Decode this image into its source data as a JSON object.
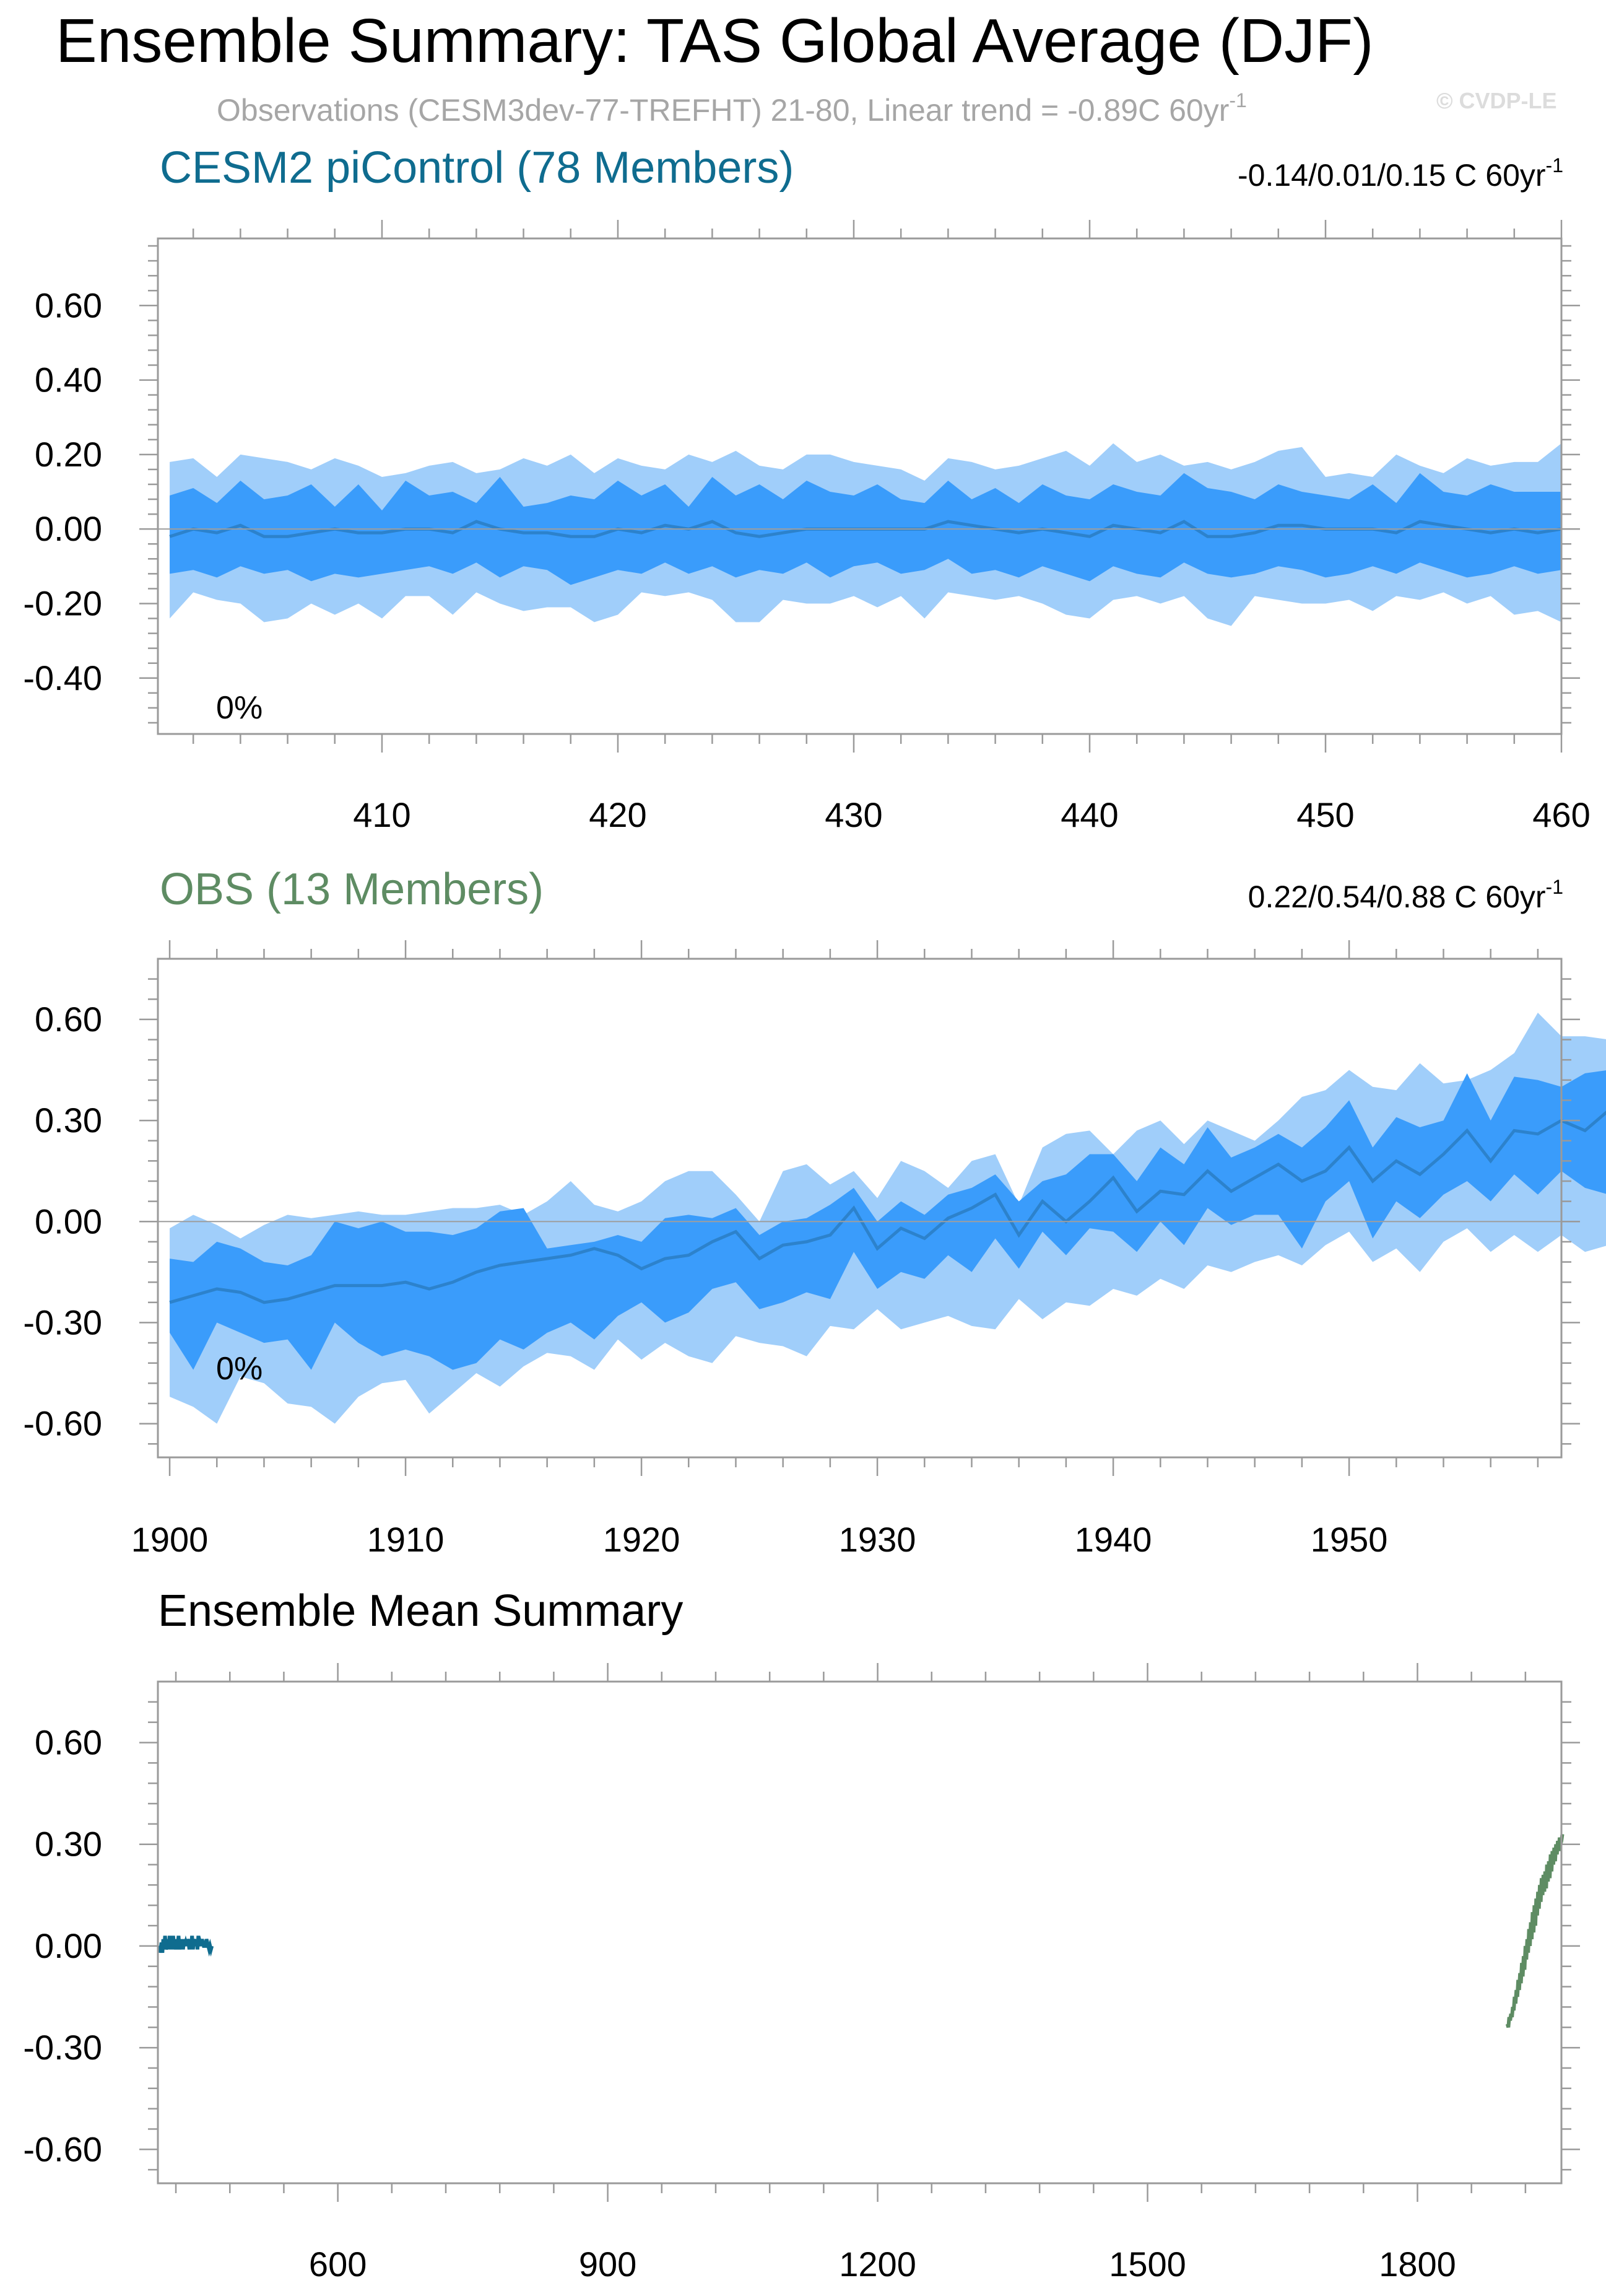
{
  "figure": {
    "title": "Ensemble Summary: TAS Global Average (DJF)",
    "subtitle": "Observations (CESM3dev-77-TREFHT) 21-80, Linear trend = -0.89C 60yr",
    "subtitle_sup": "-1",
    "copyright": "© CVDP-LE",
    "colors": {
      "outer_band": "#a0cefa",
      "inner_band": "#3a9cfb",
      "mean_line": "#2c82cc",
      "model_color": "#0f6c8f",
      "obs_color": "#5e8c63",
      "axis": "#9a9a9a",
      "text": "#000000"
    }
  },
  "chart_data": [
    {
      "type": "area",
      "panel": "top",
      "title": "CESM2 piControl (78 Members)",
      "stats": "-0.14/0.01/0.15 C 60yr",
      "stats_sup": "-1",
      "annotation": "0%",
      "xlim": [
        400.5,
        460
      ],
      "ylim": [
        -0.55,
        0.78
      ],
      "yticks": [
        0.6,
        0.4,
        0.2,
        0.0,
        -0.2,
        -0.4
      ],
      "ytick_labels": [
        "0.60",
        "0.40",
        "0.20",
        "0.00",
        "-0.20",
        "-0.40"
      ],
      "xticks": [
        410,
        420,
        430,
        440,
        450,
        460
      ],
      "xtick_labels": [
        "410",
        "420",
        "430",
        "440",
        "450",
        "460"
      ],
      "x_start": 401,
      "mean": [
        -0.02,
        0.0,
        -0.01,
        0.01,
        -0.02,
        -0.02,
        -0.01,
        0.0,
        -0.01,
        -0.01,
        0.0,
        0.0,
        -0.01,
        0.02,
        0.0,
        -0.01,
        -0.01,
        -0.02,
        -0.02,
        0.0,
        -0.01,
        0.01,
        0.0,
        0.02,
        -0.01,
        -0.02,
        -0.01,
        0.0,
        0.0,
        0.0,
        0.0,
        0.0,
        0.0,
        0.02,
        0.01,
        0.0,
        -0.01,
        0.0,
        -0.01,
        -0.02,
        0.01,
        0.0,
        -0.01,
        0.02,
        -0.02,
        -0.02,
        -0.01,
        0.01,
        0.01,
        0.0,
        0.0,
        0.0,
        -0.01,
        0.02,
        0.01,
        0.0,
        -0.01,
        0.0,
        -0.01,
        0.0
      ],
      "inner_hi": [
        0.09,
        0.11,
        0.07,
        0.13,
        0.08,
        0.09,
        0.12,
        0.06,
        0.12,
        0.05,
        0.13,
        0.09,
        0.1,
        0.07,
        0.14,
        0.06,
        0.07,
        0.09,
        0.08,
        0.13,
        0.09,
        0.12,
        0.06,
        0.14,
        0.09,
        0.12,
        0.08,
        0.13,
        0.1,
        0.09,
        0.12,
        0.08,
        0.07,
        0.13,
        0.08,
        0.11,
        0.07,
        0.12,
        0.09,
        0.08,
        0.12,
        0.1,
        0.09,
        0.15,
        0.11,
        0.1,
        0.08,
        0.12,
        0.1,
        0.09,
        0.08,
        0.12,
        0.07,
        0.15,
        0.1,
        0.09,
        0.12,
        0.1,
        0.1,
        0.1
      ],
      "inner_lo": [
        -0.12,
        -0.11,
        -0.13,
        -0.1,
        -0.12,
        -0.11,
        -0.14,
        -0.12,
        -0.13,
        -0.12,
        -0.11,
        -0.1,
        -0.12,
        -0.09,
        -0.13,
        -0.1,
        -0.11,
        -0.15,
        -0.13,
        -0.11,
        -0.12,
        -0.09,
        -0.12,
        -0.1,
        -0.13,
        -0.11,
        -0.12,
        -0.09,
        -0.13,
        -0.1,
        -0.09,
        -0.12,
        -0.11,
        -0.08,
        -0.12,
        -0.11,
        -0.13,
        -0.1,
        -0.12,
        -0.14,
        -0.1,
        -0.12,
        -0.13,
        -0.09,
        -0.12,
        -0.13,
        -0.12,
        -0.1,
        -0.11,
        -0.13,
        -0.12,
        -0.1,
        -0.12,
        -0.09,
        -0.11,
        -0.13,
        -0.12,
        -0.1,
        -0.12,
        -0.11
      ],
      "outer_hi": [
        0.18,
        0.19,
        0.14,
        0.2,
        0.19,
        0.18,
        0.16,
        0.19,
        0.17,
        0.14,
        0.15,
        0.17,
        0.18,
        0.15,
        0.16,
        0.19,
        0.17,
        0.2,
        0.15,
        0.19,
        0.17,
        0.16,
        0.2,
        0.18,
        0.21,
        0.17,
        0.16,
        0.2,
        0.2,
        0.18,
        0.17,
        0.16,
        0.13,
        0.19,
        0.18,
        0.16,
        0.17,
        0.19,
        0.21,
        0.17,
        0.23,
        0.18,
        0.2,
        0.17,
        0.18,
        0.16,
        0.18,
        0.21,
        0.22,
        0.14,
        0.15,
        0.14,
        0.2,
        0.17,
        0.15,
        0.19,
        0.17,
        0.18,
        0.18,
        0.23
      ],
      "outer_lo": [
        -0.24,
        -0.17,
        -0.19,
        -0.2,
        -0.25,
        -0.24,
        -0.2,
        -0.23,
        -0.2,
        -0.24,
        -0.18,
        -0.18,
        -0.23,
        -0.17,
        -0.2,
        -0.22,
        -0.21,
        -0.21,
        -0.25,
        -0.23,
        -0.17,
        -0.18,
        -0.17,
        -0.19,
        -0.25,
        -0.25,
        -0.19,
        -0.2,
        -0.2,
        -0.18,
        -0.21,
        -0.18,
        -0.24,
        -0.17,
        -0.18,
        -0.19,
        -0.18,
        -0.2,
        -0.23,
        -0.24,
        -0.19,
        -0.18,
        -0.2,
        -0.18,
        -0.24,
        -0.26,
        -0.18,
        -0.19,
        -0.2,
        -0.2,
        -0.19,
        -0.22,
        -0.18,
        -0.19,
        -0.17,
        -0.2,
        -0.18,
        -0.23,
        -0.22,
        -0.25
      ]
    },
    {
      "type": "area",
      "panel": "middle",
      "title": "OBS (13 Members)",
      "stats": "0.22/0.54/0.88 C 60yr",
      "stats_sup": "-1",
      "annotation": "0%",
      "xlim": [
        1899.5,
        1959
      ],
      "ylim": [
        -0.7,
        0.78
      ],
      "yticks": [
        0.6,
        0.3,
        0.0,
        -0.3,
        -0.6
      ],
      "ytick_labels": [
        "0.60",
        "0.30",
        "0.00",
        "-0.30",
        "-0.60"
      ],
      "xticks": [
        1900,
        1910,
        1920,
        1930,
        1940,
        1950
      ],
      "xtick_labels": [
        "1900",
        "1910",
        "1920",
        "1930",
        "1940",
        "1950"
      ],
      "x_start": 1900,
      "mean": [
        -0.24,
        -0.22,
        -0.2,
        -0.21,
        -0.24,
        -0.23,
        -0.21,
        -0.19,
        -0.19,
        -0.19,
        -0.18,
        -0.2,
        -0.18,
        -0.15,
        -0.13,
        -0.12,
        -0.11,
        -0.1,
        -0.08,
        -0.1,
        -0.14,
        -0.11,
        -0.1,
        -0.06,
        -0.03,
        -0.11,
        -0.07,
        -0.06,
        -0.04,
        0.04,
        -0.08,
        -0.02,
        -0.05,
        0.01,
        0.04,
        0.08,
        -0.04,
        0.06,
        0.0,
        0.06,
        0.13,
        0.03,
        0.09,
        0.08,
        0.15,
        0.09,
        0.13,
        0.17,
        0.12,
        0.15,
        0.22,
        0.12,
        0.18,
        0.14,
        0.2,
        0.27,
        0.18,
        0.27,
        0.26,
        0.3,
        0.27,
        0.33
      ],
      "inner_hi": [
        -0.11,
        -0.12,
        -0.06,
        -0.08,
        -0.12,
        -0.13,
        -0.1,
        0.0,
        -0.02,
        0.0,
        -0.03,
        -0.03,
        -0.04,
        -0.02,
        0.03,
        0.04,
        -0.08,
        -0.07,
        -0.06,
        -0.04,
        -0.06,
        0.01,
        0.02,
        0.01,
        0.04,
        -0.04,
        0.0,
        0.01,
        0.05,
        0.1,
        0.0,
        0.06,
        0.02,
        0.08,
        0.1,
        0.14,
        0.06,
        0.12,
        0.14,
        0.2,
        0.2,
        0.12,
        0.22,
        0.17,
        0.28,
        0.19,
        0.22,
        0.26,
        0.22,
        0.28,
        0.36,
        0.22,
        0.31,
        0.28,
        0.3,
        0.44,
        0.3,
        0.43,
        0.42,
        0.4,
        0.44,
        0.45
      ],
      "inner_lo": [
        -0.33,
        -0.44,
        -0.3,
        -0.33,
        -0.36,
        -0.35,
        -0.44,
        -0.3,
        -0.36,
        -0.4,
        -0.38,
        -0.4,
        -0.44,
        -0.42,
        -0.35,
        -0.38,
        -0.33,
        -0.3,
        -0.35,
        -0.28,
        -0.24,
        -0.3,
        -0.27,
        -0.2,
        -0.18,
        -0.26,
        -0.24,
        -0.21,
        -0.23,
        -0.09,
        -0.2,
        -0.15,
        -0.17,
        -0.1,
        -0.15,
        -0.05,
        -0.14,
        -0.03,
        -0.1,
        -0.02,
        -0.03,
        -0.09,
        0.0,
        -0.07,
        0.04,
        -0.01,
        0.02,
        0.02,
        -0.08,
        0.06,
        0.12,
        -0.05,
        0.06,
        0.01,
        0.08,
        0.12,
        0.06,
        0.14,
        0.08,
        0.15,
        0.1,
        0.08
      ],
      "outer_hi": [
        -0.02,
        0.02,
        -0.01,
        -0.05,
        -0.01,
        0.02,
        0.01,
        0.02,
        0.03,
        0.02,
        0.02,
        0.03,
        0.04,
        0.04,
        0.05,
        0.02,
        0.06,
        0.12,
        0.05,
        0.03,
        0.06,
        0.12,
        0.15,
        0.15,
        0.08,
        0.0,
        0.15,
        0.17,
        0.11,
        0.15,
        0.07,
        0.18,
        0.15,
        0.1,
        0.18,
        0.2,
        0.05,
        0.22,
        0.26,
        0.27,
        0.2,
        0.27,
        0.3,
        0.23,
        0.3,
        0.27,
        0.24,
        0.3,
        0.37,
        0.39,
        0.45,
        0.4,
        0.39,
        0.47,
        0.41,
        0.42,
        0.45,
        0.5,
        0.62,
        0.55,
        0.55,
        0.54
      ],
      "outer_lo": [
        -0.52,
        -0.55,
        -0.6,
        -0.46,
        -0.48,
        -0.54,
        -0.55,
        -0.6,
        -0.52,
        -0.48,
        -0.47,
        -0.57,
        -0.51,
        -0.45,
        -0.49,
        -0.43,
        -0.39,
        -0.4,
        -0.44,
        -0.35,
        -0.41,
        -0.36,
        -0.4,
        -0.42,
        -0.34,
        -0.36,
        -0.37,
        -0.4,
        -0.31,
        -0.32,
        -0.26,
        -0.32,
        -0.3,
        -0.28,
        -0.31,
        -0.32,
        -0.23,
        -0.29,
        -0.24,
        -0.25,
        -0.2,
        -0.22,
        -0.17,
        -0.2,
        -0.13,
        -0.15,
        -0.12,
        -0.1,
        -0.13,
        -0.07,
        -0.03,
        -0.12,
        -0.08,
        -0.15,
        -0.06,
        -0.02,
        -0.09,
        -0.04,
        -0.09,
        -0.04,
        -0.09,
        -0.07
      ]
    },
    {
      "type": "line",
      "panel": "bottom",
      "title": "Ensemble Mean Summary",
      "xlim": [
        400,
        1960
      ],
      "ylim": [
        -0.7,
        0.78
      ],
      "yticks": [
        0.6,
        0.3,
        0.0,
        -0.3,
        -0.6
      ],
      "ytick_labels": [
        "0.60",
        "0.30",
        "0.00",
        "-0.30",
        "-0.60"
      ],
      "xticks": [
        600,
        900,
        1200,
        1500,
        1800
      ],
      "xtick_labels": [
        "600",
        "900",
        "1200",
        "1500",
        "1800"
      ],
      "series": [
        {
          "name": "CESM2 piControl",
          "color": "#0f6c8f",
          "x_start": 401,
          "values": [
            -0.02,
            0.0,
            -0.01,
            0.01,
            -0.02,
            0.02,
            -0.01,
            0.03,
            -0.01,
            0.0,
            0.02,
            -0.01,
            0.03,
            0.0,
            0.02,
            -0.01,
            0.03,
            0.0,
            0.01,
            -0.01,
            0.02,
            0.0,
            0.03,
            -0.01,
            0.01,
            0.0,
            0.02,
            -0.01,
            0.02,
            0.0,
            0.01,
            0.0,
            0.02,
            0.01,
            -0.01,
            0.02,
            0.0,
            0.03,
            -0.01,
            0.02,
            0.01,
            0.0,
            0.02,
            -0.01,
            0.03,
            0.0,
            0.01,
            0.0,
            0.02,
            0.01,
            0.0,
            0.0,
            0.0,
            0.02,
            0.01,
            0.0,
            -0.01,
            0.0,
            -0.01,
            0.0
          ]
        },
        {
          "name": "OBS",
          "color": "#5e8c63",
          "x_start": 1900,
          "values": [
            -0.23,
            -0.24,
            -0.21,
            -0.22,
            -0.2,
            -0.21,
            -0.18,
            -0.19,
            -0.15,
            -0.17,
            -0.13,
            -0.15,
            -0.1,
            -0.13,
            -0.08,
            -0.11,
            -0.05,
            -0.09,
            -0.03,
            -0.07,
            0.0,
            -0.04,
            0.02,
            -0.02,
            0.05,
            0.0,
            0.07,
            0.02,
            0.1,
            0.04,
            0.12,
            0.06,
            0.14,
            0.09,
            0.16,
            0.11,
            0.18,
            0.13,
            0.2,
            0.15,
            0.21,
            0.16,
            0.22,
            0.17,
            0.24,
            0.19,
            0.25,
            0.2,
            0.27,
            0.22,
            0.28,
            0.24,
            0.29,
            0.25,
            0.3,
            0.27,
            0.31,
            0.28,
            0.32,
            0.3,
            0.31,
            0.33
          ]
        }
      ]
    }
  ]
}
